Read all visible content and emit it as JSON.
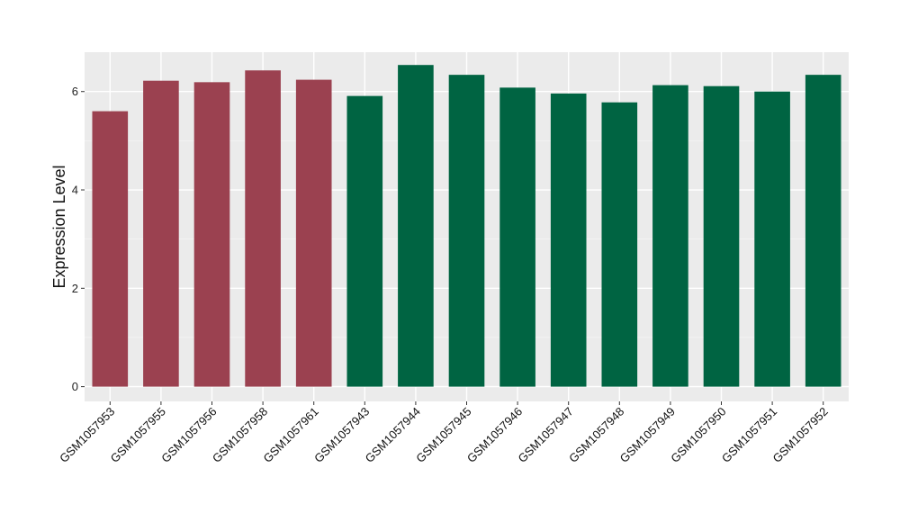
{
  "chart_data": {
    "type": "bar",
    "title": "",
    "xlabel": "",
    "ylabel": "Expression Level",
    "ylim": [
      -0.3,
      6.8
    ],
    "yticks": [
      0,
      2,
      4,
      6
    ],
    "ytick_labels": [
      "0",
      "2",
      "4",
      "6"
    ],
    "grid": true,
    "background": "#EBEBEB",
    "categories": [
      "GSM1057953",
      "GSM1057955",
      "GSM1057956",
      "GSM1057958",
      "GSM1057961",
      "GSM1057943",
      "GSM1057944",
      "GSM1057945",
      "GSM1057946",
      "GSM1057947",
      "GSM1057948",
      "GSM1057949",
      "GSM1057950",
      "GSM1057951",
      "GSM1057952"
    ],
    "values": [
      5.6,
      6.22,
      6.19,
      6.43,
      6.24,
      5.91,
      6.54,
      6.34,
      6.08,
      5.96,
      5.78,
      6.13,
      6.11,
      6.0,
      6.34
    ],
    "group_of_bar": [
      0,
      0,
      0,
      0,
      0,
      1,
      1,
      1,
      1,
      1,
      1,
      1,
      1,
      1,
      1
    ],
    "group_colors": [
      "#9B4150",
      "#006442"
    ]
  }
}
